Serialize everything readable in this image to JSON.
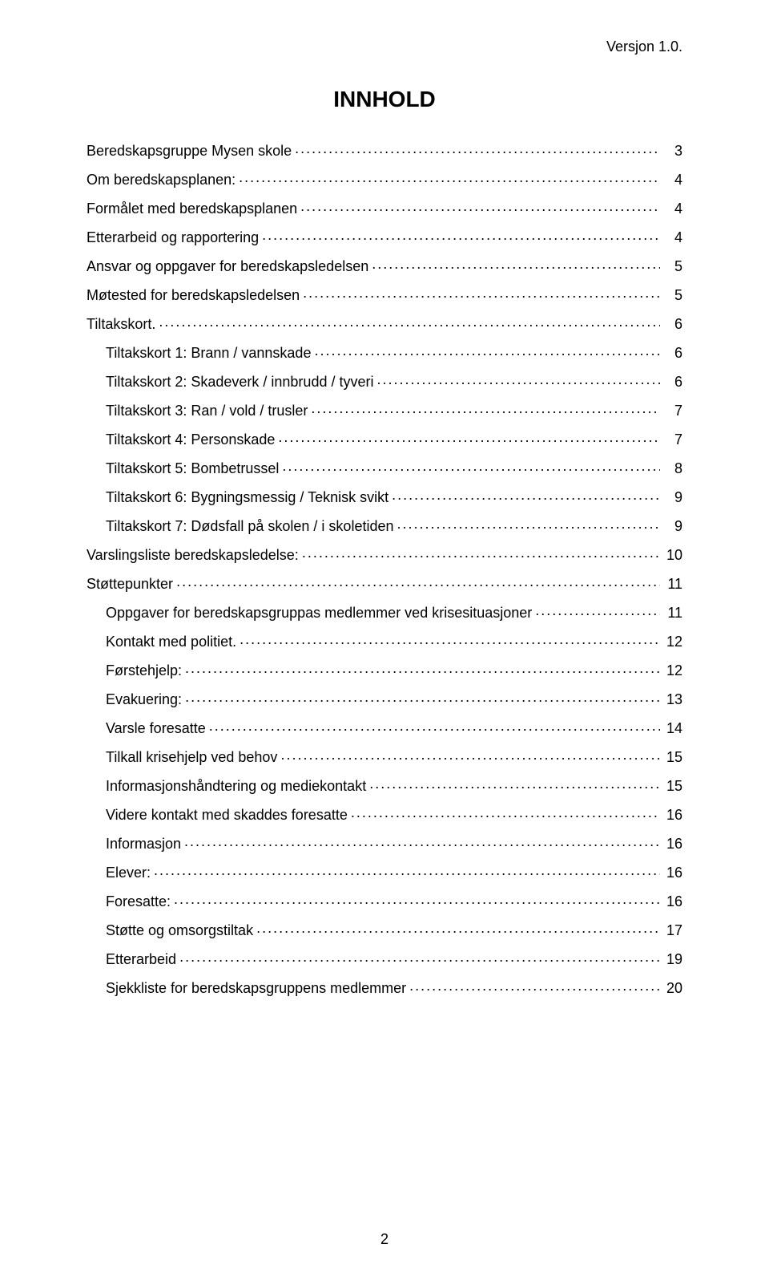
{
  "document": {
    "version_label": "Versjon 1.0.",
    "title": "INNHOLD",
    "page_number": "2",
    "typography": {
      "body_fontsize_pt": 14,
      "title_fontsize_pt": 20,
      "font_family": "Arial",
      "text_color": "#000000",
      "background_color": "#ffffff"
    },
    "toc": [
      {
        "label": "Beredskapsgruppe Mysen skole",
        "page": "3",
        "indent": false
      },
      {
        "label": "Om beredskapsplanen:",
        "page": "4",
        "indent": false
      },
      {
        "label": "Formålet med beredskapsplanen",
        "page": "4",
        "indent": false
      },
      {
        "label": "Etterarbeid og rapportering",
        "page": "4",
        "indent": false
      },
      {
        "label": "Ansvar og oppgaver for beredskapsledelsen",
        "page": "5",
        "indent": false
      },
      {
        "label": "Møtested for beredskapsledelsen",
        "page": "5",
        "indent": false
      },
      {
        "label": "Tiltakskort.",
        "page": "6",
        "indent": false
      },
      {
        "label": "Tiltakskort 1: Brann / vannskade",
        "page": "6",
        "indent": true
      },
      {
        "label": "Tiltakskort 2: Skadeverk / innbrudd / tyveri",
        "page": "6",
        "indent": true
      },
      {
        "label": "Tiltakskort 3: Ran / vold / trusler",
        "page": "7",
        "indent": true
      },
      {
        "label": "Tiltakskort 4: Personskade",
        "page": "7",
        "indent": true
      },
      {
        "label": "Tiltakskort 5: Bombetrussel",
        "page": "8",
        "indent": true
      },
      {
        "label": "Tiltakskort 6: Bygningsmessig / Teknisk svikt",
        "page": "9",
        "indent": true
      },
      {
        "label": "Tiltakskort 7: Dødsfall på skolen / i skoletiden",
        "page": "9",
        "indent": true
      },
      {
        "label": "Varslingsliste beredskapsledelse:",
        "page": "10",
        "indent": false
      },
      {
        "label": "Støttepunkter",
        "page": "11",
        "indent": false
      },
      {
        "label": "Oppgaver for beredskapsgruppas medlemmer ved krisesituasjoner",
        "page": "11",
        "indent": true
      },
      {
        "label": "Kontakt med politiet.",
        "page": "12",
        "indent": true
      },
      {
        "label": "Førstehjelp:",
        "page": "12",
        "indent": true
      },
      {
        "label": "Evakuering:",
        "page": "13",
        "indent": true
      },
      {
        "label": "Varsle foresatte",
        "page": "14",
        "indent": true
      },
      {
        "label": "Tilkall krisehjelp ved behov",
        "page": "15",
        "indent": true
      },
      {
        "label": "Informasjonshåndtering og mediekontakt",
        "page": "15",
        "indent": true
      },
      {
        "label": "Videre kontakt med skaddes foresatte",
        "page": "16",
        "indent": true
      },
      {
        "label": "Informasjon",
        "page": "16",
        "indent": true
      },
      {
        "label": "Elever:",
        "page": "16",
        "indent": true
      },
      {
        "label": "Foresatte:",
        "page": "16",
        "indent": true
      },
      {
        "label": "Støtte og omsorgstiltak",
        "page": "17",
        "indent": true
      },
      {
        "label": "Etterarbeid",
        "page": "19",
        "indent": true
      },
      {
        "label": "Sjekkliste for beredskapsgruppens medlemmer",
        "page": "20",
        "indent": true
      }
    ]
  }
}
